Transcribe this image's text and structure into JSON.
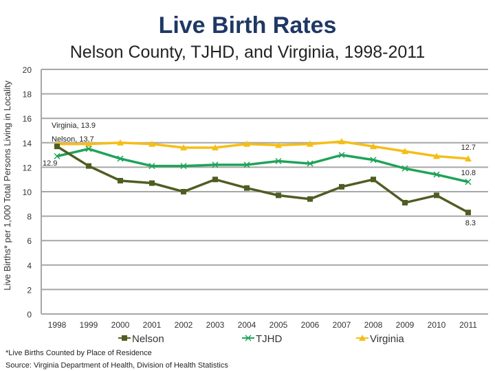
{
  "chart_data": {
    "type": "line",
    "title": "Live Birth Rates",
    "subtitle": "Nelson County, TJHD, and Virginia, 1998-2011",
    "ylabel": "Live Births* per 1,000 Total Persons Living in Locality",
    "xlabel": "",
    "ylim": [
      0,
      20
    ],
    "yticks": [
      0,
      2,
      4,
      6,
      8,
      10,
      12,
      14,
      16,
      18,
      20
    ],
    "grid": true,
    "legend": "bottom",
    "categories": [
      "1998",
      "1999",
      "2000",
      "2001",
      "2002",
      "2003",
      "2004",
      "2005",
      "2006",
      "2007",
      "2008",
      "2009",
      "2010",
      "2011"
    ],
    "series": [
      {
        "name": "Nelson",
        "color": "#4f5d23",
        "marker": "square",
        "values": [
          13.7,
          12.1,
          10.9,
          10.7,
          10.0,
          11.0,
          10.3,
          9.7,
          9.4,
          10.4,
          11.0,
          9.1,
          9.7,
          8.3
        ]
      },
      {
        "name": "TJHD",
        "color": "#1fa35a",
        "marker": "x",
        "values": [
          12.9,
          13.5,
          12.7,
          12.1,
          12.1,
          12.2,
          12.2,
          12.5,
          12.3,
          13.0,
          12.6,
          11.9,
          11.4,
          10.8
        ]
      },
      {
        "name": "Virginia",
        "color": "#f5be16",
        "marker": "triangle",
        "values": [
          13.9,
          13.9,
          14.0,
          13.9,
          13.6,
          13.6,
          13.9,
          13.8,
          13.9,
          14.1,
          13.7,
          13.3,
          12.9,
          12.7
        ]
      }
    ],
    "annotations": [
      {
        "text": "Virginia, 13.9",
        "series": "Virginia",
        "category": "1998"
      },
      {
        "text": "Nelson, 13.7",
        "series": "Nelson",
        "category": "1998"
      },
      {
        "text": "12.9",
        "series": "TJHD",
        "category": "1998"
      },
      {
        "text": "12.7",
        "series": "Virginia",
        "category": "2011"
      },
      {
        "text": "10.8",
        "series": "TJHD",
        "category": "2011"
      },
      {
        "text": "8.3",
        "series": "Nelson",
        "category": "2011"
      }
    ]
  },
  "footnotes": {
    "note": "*Live Births Counted by Place of Residence",
    "source": "Source: Virginia Department of Health, Division of Health Statistics"
  }
}
